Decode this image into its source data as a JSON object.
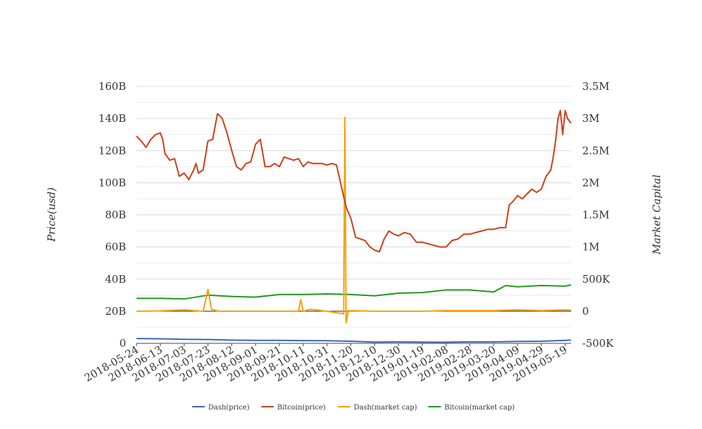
{
  "chart_data": {
    "type": "line",
    "ylabel_left": "Price(usd)",
    "ylabel_right": "Market Capital",
    "y_left_ticks": [
      "0",
      "20B",
      "40B",
      "60B",
      "80B",
      "100B",
      "120B",
      "140B",
      "160B"
    ],
    "y_left_range": [
      0,
      160
    ],
    "y_right_ticks": [
      "-500K",
      "0",
      "500K",
      "1M",
      "1.5M",
      "2M",
      "2.5M",
      "3M",
      "3.5M"
    ],
    "y_right_range": [
      -500000,
      3500000
    ],
    "x_ticks": [
      "2018-05-24",
      "2018-06-13",
      "2018-07-03",
      "2018-07-23",
      "2018-08-12",
      "2018-09-01",
      "2018-09-21",
      "2018-10-11",
      "2018-10-31",
      "2018-11-20",
      "2018-12-10",
      "2018-12-30",
      "2019-01-19",
      "2019-02-08",
      "2019-02-28",
      "2019-03-20",
      "2019-04-09",
      "2019-04-29",
      "2019-05-19"
    ],
    "x_range": [
      "2018-05-24",
      "2019-05-24"
    ],
    "grid": true,
    "legend_position": "bottom",
    "series": [
      {
        "name": "Dash(price)",
        "axis": "left",
        "color": "#3b67b8",
        "points": [
          [
            "2018-05-24",
            3.0
          ],
          [
            "2018-06-13",
            2.8
          ],
          [
            "2018-07-03",
            2.5
          ],
          [
            "2018-07-23",
            2.4
          ],
          [
            "2018-08-12",
            2.0
          ],
          [
            "2018-09-01",
            1.8
          ],
          [
            "2018-09-21",
            1.8
          ],
          [
            "2018-10-11",
            1.7
          ],
          [
            "2018-10-31",
            1.6
          ],
          [
            "2018-11-20",
            1.3
          ],
          [
            "2018-12-10",
            0.8
          ],
          [
            "2018-12-30",
            0.9
          ],
          [
            "2019-01-19",
            0.8
          ],
          [
            "2019-02-08",
            0.7
          ],
          [
            "2019-02-28",
            0.9
          ],
          [
            "2019-03-20",
            0.9
          ],
          [
            "2019-04-09",
            1.2
          ],
          [
            "2019-04-29",
            1.3
          ],
          [
            "2019-05-19",
            1.8
          ],
          [
            "2019-05-24",
            2.0
          ]
        ]
      },
      {
        "name": "Bitcoin(price)",
        "axis": "left",
        "color": "#cc3e16",
        "points": [
          [
            "2018-05-24",
            129
          ],
          [
            "2018-05-28",
            126
          ],
          [
            "2018-06-01",
            122
          ],
          [
            "2018-06-05",
            127
          ],
          [
            "2018-06-09",
            130
          ],
          [
            "2018-06-13",
            131
          ],
          [
            "2018-06-15",
            127
          ],
          [
            "2018-06-17",
            118
          ],
          [
            "2018-06-21",
            114
          ],
          [
            "2018-06-25",
            115
          ],
          [
            "2018-06-29",
            104
          ],
          [
            "2018-07-03",
            106
          ],
          [
            "2018-07-07",
            102
          ],
          [
            "2018-07-11",
            108
          ],
          [
            "2018-07-13",
            112
          ],
          [
            "2018-07-15",
            106
          ],
          [
            "2018-07-19",
            108
          ],
          [
            "2018-07-23",
            126
          ],
          [
            "2018-07-27",
            127
          ],
          [
            "2018-07-31",
            143
          ],
          [
            "2018-08-04",
            140
          ],
          [
            "2018-08-08",
            131
          ],
          [
            "2018-08-12",
            120
          ],
          [
            "2018-08-16",
            110
          ],
          [
            "2018-08-20",
            108
          ],
          [
            "2018-08-24",
            112
          ],
          [
            "2018-08-28",
            113
          ],
          [
            "2018-09-01",
            124
          ],
          [
            "2018-09-05",
            127
          ],
          [
            "2018-09-09",
            110
          ],
          [
            "2018-09-13",
            110
          ],
          [
            "2018-09-17",
            112
          ],
          [
            "2018-09-21",
            110
          ],
          [
            "2018-09-25",
            116
          ],
          [
            "2018-09-29",
            115
          ],
          [
            "2018-10-03",
            114
          ],
          [
            "2018-10-07",
            115
          ],
          [
            "2018-10-11",
            110
          ],
          [
            "2018-10-15",
            113
          ],
          [
            "2018-10-19",
            112
          ],
          [
            "2018-10-23",
            112
          ],
          [
            "2018-10-27",
            112
          ],
          [
            "2018-10-31",
            111
          ],
          [
            "2018-11-04",
            112
          ],
          [
            "2018-11-08",
            111
          ],
          [
            "2018-11-12",
            98
          ],
          [
            "2018-11-16",
            85
          ],
          [
            "2018-11-20",
            78
          ],
          [
            "2018-11-24",
            66
          ],
          [
            "2018-11-28",
            65
          ],
          [
            "2018-12-02",
            64
          ],
          [
            "2018-12-06",
            60
          ],
          [
            "2018-12-10",
            58
          ],
          [
            "2018-12-14",
            57
          ],
          [
            "2018-12-18",
            65
          ],
          [
            "2018-12-22",
            70
          ],
          [
            "2018-12-26",
            68
          ],
          [
            "2018-12-30",
            67
          ],
          [
            "2019-01-04",
            69
          ],
          [
            "2019-01-09",
            68
          ],
          [
            "2019-01-14",
            63
          ],
          [
            "2019-01-19",
            63
          ],
          [
            "2019-01-24",
            62
          ],
          [
            "2019-01-29",
            61
          ],
          [
            "2019-02-03",
            60
          ],
          [
            "2019-02-08",
            60
          ],
          [
            "2019-02-13",
            64
          ],
          [
            "2019-02-18",
            65
          ],
          [
            "2019-02-23",
            68
          ],
          [
            "2019-02-28",
            68
          ],
          [
            "2019-03-05",
            69
          ],
          [
            "2019-03-10",
            70
          ],
          [
            "2019-03-15",
            71
          ],
          [
            "2019-03-20",
            71
          ],
          [
            "2019-03-25",
            72
          ],
          [
            "2019-03-30",
            72
          ],
          [
            "2019-04-02",
            86
          ],
          [
            "2019-04-06",
            89
          ],
          [
            "2019-04-09",
            92
          ],
          [
            "2019-04-13",
            90
          ],
          [
            "2019-04-17",
            93
          ],
          [
            "2019-04-21",
            96
          ],
          [
            "2019-04-25",
            94
          ],
          [
            "2019-04-29",
            96
          ],
          [
            "2019-05-03",
            104
          ],
          [
            "2019-05-07",
            108
          ],
          [
            "2019-05-09",
            116
          ],
          [
            "2019-05-11",
            126
          ],
          [
            "2019-05-13",
            140
          ],
          [
            "2019-05-15",
            145
          ],
          [
            "2019-05-17",
            130
          ],
          [
            "2019-05-19",
            145
          ],
          [
            "2019-05-21",
            140
          ],
          [
            "2019-05-24",
            137
          ]
        ]
      },
      {
        "name": "Dash(market cap)",
        "axis": "right",
        "color": "#f4a00a",
        "points": [
          [
            "2018-05-24",
            0
          ],
          [
            "2018-06-13",
            5000
          ],
          [
            "2018-07-03",
            20000
          ],
          [
            "2018-07-19",
            0
          ],
          [
            "2018-07-23",
            340000
          ],
          [
            "2018-07-26",
            30000
          ],
          [
            "2018-08-01",
            0
          ],
          [
            "2018-08-12",
            0
          ],
          [
            "2018-09-01",
            0
          ],
          [
            "2018-09-21",
            0
          ],
          [
            "2018-10-07",
            0
          ],
          [
            "2018-10-09",
            180000
          ],
          [
            "2018-10-11",
            0
          ],
          [
            "2018-10-17",
            30000
          ],
          [
            "2018-10-31",
            0
          ],
          [
            "2018-11-14",
            -40000
          ],
          [
            "2018-11-15",
            3020000
          ],
          [
            "2018-11-16",
            -180000
          ],
          [
            "2018-11-18",
            10000
          ],
          [
            "2018-12-10",
            0
          ],
          [
            "2018-12-30",
            0
          ],
          [
            "2019-01-19",
            0
          ],
          [
            "2019-02-08",
            10000
          ],
          [
            "2019-02-28",
            10000
          ],
          [
            "2019-03-20",
            10000
          ],
          [
            "2019-04-09",
            20000
          ],
          [
            "2019-04-29",
            10000
          ],
          [
            "2019-05-19",
            20000
          ],
          [
            "2019-05-24",
            15000
          ]
        ]
      },
      {
        "name": "Bitcoin(market cap)",
        "axis": "right",
        "color": "#1f991f",
        "points": [
          [
            "2018-05-24",
            200000
          ],
          [
            "2018-06-13",
            200000
          ],
          [
            "2018-07-03",
            190000
          ],
          [
            "2018-07-23",
            250000
          ],
          [
            "2018-08-12",
            230000
          ],
          [
            "2018-09-01",
            220000
          ],
          [
            "2018-09-21",
            260000
          ],
          [
            "2018-10-11",
            260000
          ],
          [
            "2018-10-31",
            270000
          ],
          [
            "2018-11-20",
            260000
          ],
          [
            "2018-12-10",
            240000
          ],
          [
            "2018-12-30",
            280000
          ],
          [
            "2019-01-19",
            290000
          ],
          [
            "2019-02-08",
            330000
          ],
          [
            "2019-02-28",
            330000
          ],
          [
            "2019-03-20",
            300000
          ],
          [
            "2019-03-30",
            400000
          ],
          [
            "2019-04-09",
            380000
          ],
          [
            "2019-04-29",
            400000
          ],
          [
            "2019-05-19",
            390000
          ],
          [
            "2019-05-24",
            410000
          ]
        ]
      }
    ]
  }
}
